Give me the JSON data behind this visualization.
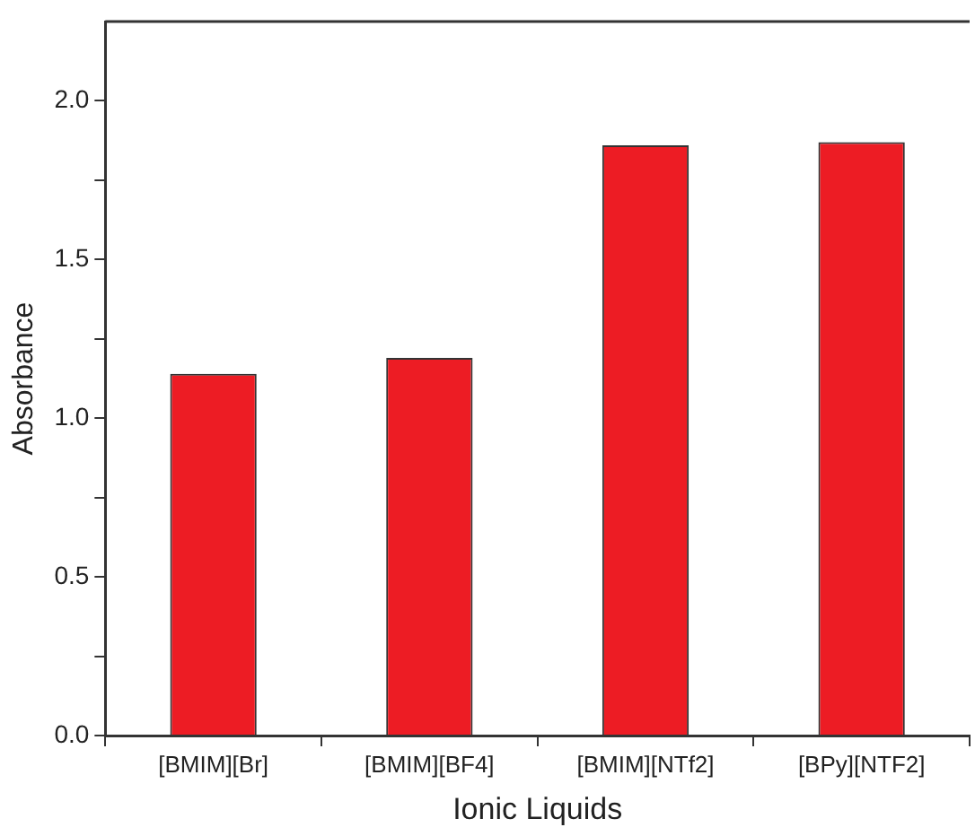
{
  "chart_data": {
    "type": "bar",
    "xlabel": "Ionic Liquids",
    "ylabel": "Absorbance",
    "categories": [
      "[BMIM][Br]",
      "[BMIM][BF4]",
      "[BMIM][NTf2]",
      "[BPy][NTF2]"
    ],
    "values": [
      1.14,
      1.19,
      1.86,
      1.87
    ],
    "color": "#ed1c24",
    "ylim": [
      0,
      2.25
    ],
    "yticks": [
      {
        "value": 0,
        "label": "0.0"
      },
      {
        "value": 0.25,
        "label": null
      },
      0.5,
      {
        "value": 0.75,
        "label": null
      },
      {
        "value": 1,
        "label": "1.0"
      },
      {
        "value": 1.25,
        "label": null
      },
      1.5,
      {
        "value": 1.75,
        "label": null
      },
      {
        "value": 2,
        "label": "2.0"
      }
    ],
    "grid": false,
    "legend": false
  }
}
